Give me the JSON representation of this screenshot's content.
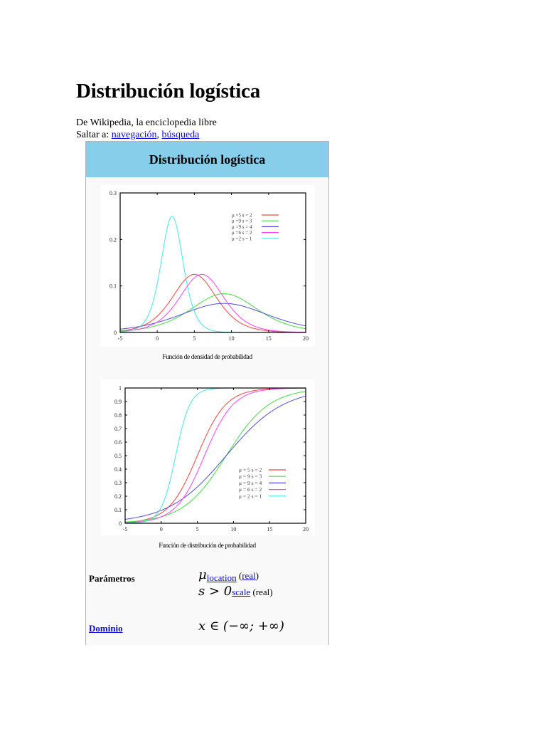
{
  "page": {
    "title": "Distribución logística",
    "subtitle": "De Wikipedia, la enciclopedia libre",
    "jump_to_label": "Saltar a: ",
    "jump_links": [
      {
        "label": "navegación"
      },
      {
        "label": "búsqueda"
      }
    ],
    "jump_separator": ", "
  },
  "infobox": {
    "title": "Distribución logística",
    "header_color": "#87ceeb",
    "rows": [
      {
        "label": "Parámetros",
        "label_is_link": false,
        "lines": [
          {
            "math": "μ",
            "link": "location",
            "suffix_open": " (",
            "suffix_link": "real",
            "suffix_close": ")"
          },
          {
            "math": "s > 0",
            "link": "scale",
            "suffix": " (real)"
          }
        ]
      },
      {
        "label": "Dominio",
        "label_is_link": true,
        "value_math": "x ∈ (−∞; +∞)"
      }
    ]
  },
  "chart_data": [
    {
      "type": "line",
      "title": "Función de densidad de probabilidad",
      "xlabel": "",
      "ylabel": "",
      "xlim": [
        -5,
        20
      ],
      "ylim": [
        0,
        0.3
      ],
      "x_ticks": [
        "-5",
        "0",
        "5",
        "10",
        "15",
        "20"
      ],
      "y_ticks": [
        "0",
        "0.1",
        "0.2",
        "0.3"
      ],
      "grid": false,
      "legend_position": "upper right",
      "function": "pdf",
      "series": [
        {
          "name": "μ =5 s = 2",
          "mu": 5,
          "s": 2,
          "color": "#ff4040",
          "peak": 0.125
        },
        {
          "name": "μ =9 s = 3",
          "mu": 9,
          "s": 3,
          "color": "#40e040",
          "peak": 0.0833
        },
        {
          "name": "μ =9 s = 4",
          "mu": 9,
          "s": 4,
          "color": "#5050e0",
          "peak": 0.0625
        },
        {
          "name": "μ =6 s = 2",
          "mu": 6,
          "s": 2,
          "color": "#ff40ff",
          "peak": 0.125
        },
        {
          "name": "μ =2 s = 1",
          "mu": 2,
          "s": 1,
          "color": "#40e8e8",
          "peak": 0.25
        }
      ]
    },
    {
      "type": "line",
      "title": "Función de distribución de probabilidad",
      "xlabel": "",
      "ylabel": "",
      "xlim": [
        -5,
        20
      ],
      "ylim": [
        0,
        1
      ],
      "x_ticks": [
        "-5",
        "0",
        "5",
        "10",
        "15",
        "20"
      ],
      "y_ticks": [
        "0",
        "0.1",
        "0.2",
        "0.3",
        "0.4",
        "0.5",
        "0.6",
        "0.7",
        "0.8",
        "0.9",
        "1"
      ],
      "grid": false,
      "legend_position": "lower right",
      "function": "cdf",
      "series": [
        {
          "name": "μ = 5 s = 2",
          "mu": 5,
          "s": 2,
          "color": "#ff4040"
        },
        {
          "name": "μ = 9 s = 3",
          "mu": 9,
          "s": 3,
          "color": "#40e040"
        },
        {
          "name": "μ = 9 s = 4",
          "mu": 9,
          "s": 4,
          "color": "#5050e0"
        },
        {
          "name": "μ = 6 s = 2",
          "mu": 6,
          "s": 2,
          "color": "#ff40ff"
        },
        {
          "name": "μ = 2 s = 1",
          "mu": 2,
          "s": 1,
          "color": "#40e8e8"
        }
      ]
    }
  ]
}
